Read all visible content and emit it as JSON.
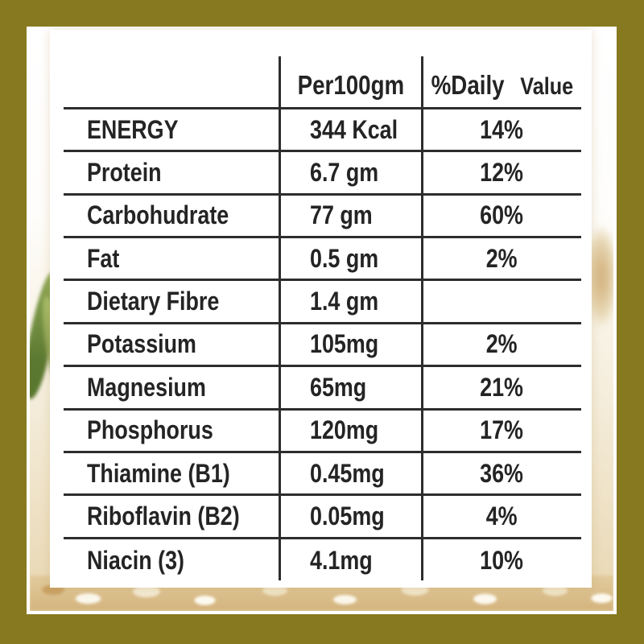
{
  "header": {
    "col_per100": "Per100gm",
    "col_daily_strong": "%Daily",
    "col_daily_light": "Value"
  },
  "rows": [
    {
      "name": "ENERGY",
      "per100": "344 Kcal",
      "daily": "14%"
    },
    {
      "name": "Protein",
      "per100": "6.7 gm",
      "daily": "12%"
    },
    {
      "name": "Carbohudrate",
      "per100": "77 gm",
      "daily": "60%"
    },
    {
      "name": "Fat",
      "per100": "0.5 gm",
      "daily": "2%"
    },
    {
      "name": "Dietary Fibre",
      "per100": "1.4 gm",
      "daily": ""
    },
    {
      "name": "Potassium",
      "per100": "105mg",
      "daily": "2%"
    },
    {
      "name": "Magnesium",
      "per100": "65mg",
      "daily": "21%"
    },
    {
      "name": "Phosphorus",
      "per100": "120mg",
      "daily": "17%"
    },
    {
      "name": "Thiamine (B1)",
      "per100": "0.45mg",
      "daily": "36%"
    },
    {
      "name": "Riboflavin (B2)",
      "per100": "0.05mg",
      "daily": "4%"
    },
    {
      "name": "Niacin (3)",
      "per100": "4.1mg",
      "daily": "10%"
    }
  ],
  "colors": {
    "frame_olive": "#87791f",
    "table_line": "#2d2d2d",
    "text": "#242424",
    "rice_beige": "#e6d7b4",
    "grain_shadow_tan": "#d4b47e",
    "leaf_green": "#6f8c3e"
  }
}
